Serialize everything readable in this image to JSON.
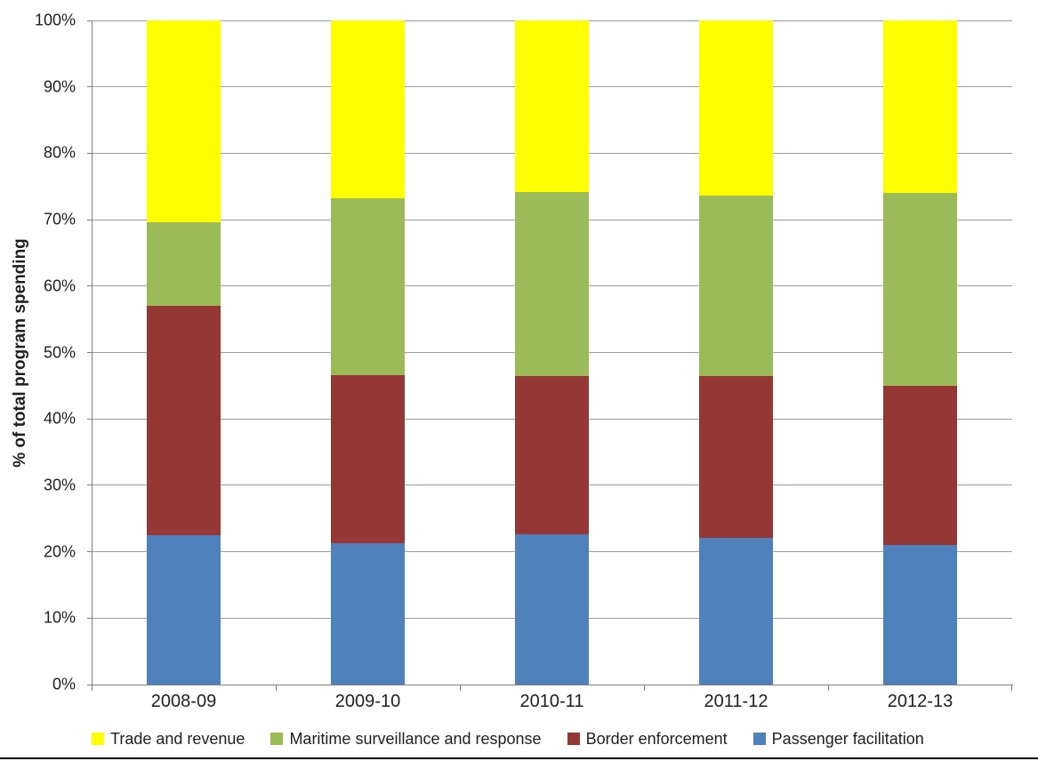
{
  "chart_data": {
    "type": "bar",
    "subtype": "stacked-100-percent",
    "title": "",
    "xlabel": "",
    "ylabel": "% of total program spending",
    "categories": [
      "2008-09",
      "2009-10",
      "2010-11",
      "2011-12",
      "2012-13"
    ],
    "series": [
      {
        "name": "Passenger facilitation",
        "color": "#4F81BD",
        "values": [
          22.5,
          21.3,
          22.6,
          22.1,
          21.0
        ]
      },
      {
        "name": "Border enforcement",
        "color": "#953735",
        "values": [
          34.5,
          25.3,
          23.8,
          24.3,
          24.0
        ]
      },
      {
        "name": "Maritime surveillance and response",
        "color": "#9BBB59",
        "values": [
          12.6,
          26.6,
          27.8,
          27.2,
          29.0
        ]
      },
      {
        "name": "Trade and revenue",
        "color": "#FFFF00",
        "values": [
          30.4,
          26.8,
          25.8,
          26.4,
          26.0
        ]
      }
    ],
    "stack_order": "bottom-to-top",
    "y_ticks": [
      "0%",
      "10%",
      "20%",
      "30%",
      "40%",
      "50%",
      "60%",
      "70%",
      "80%",
      "90%",
      "100%"
    ],
    "ylim": [
      0,
      100
    ],
    "grid": true,
    "legend_position": "bottom",
    "legend_order": [
      "Trade and revenue",
      "Maritime surveillance and response",
      "Border enforcement",
      "Passenger facilitation"
    ]
  },
  "colors": {
    "background": "#FFFFFF",
    "gridline": "#9B9B9B",
    "axis": "#7F7F7F",
    "text": "#1F1F1F",
    "bottom_rule": "#000000"
  }
}
